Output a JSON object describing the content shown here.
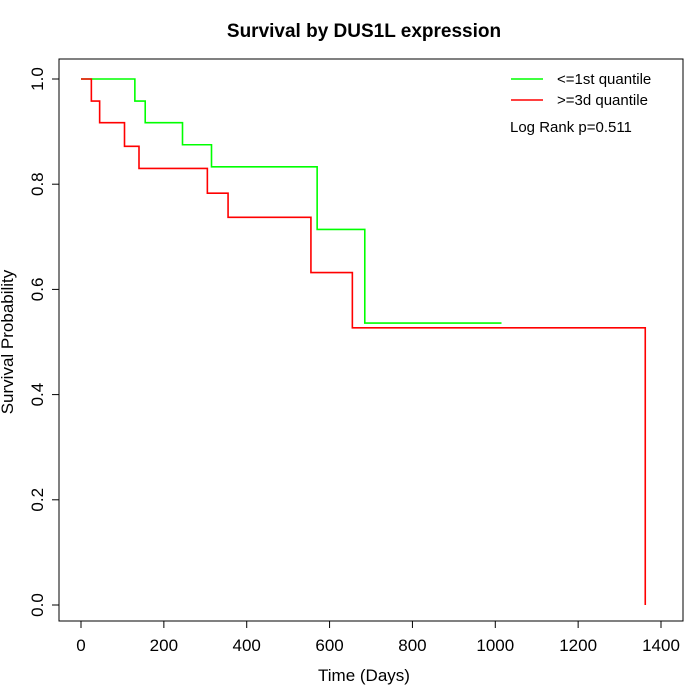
{
  "chart_data": {
    "type": "line",
    "title": "Survival by DUS1L expression",
    "xlabel": "Time (Days)",
    "ylabel": "Survival Probability",
    "xlim": [
      0,
      1400
    ],
    "ylim": [
      0,
      1.0
    ],
    "x_ticks": [
      0,
      200,
      400,
      600,
      800,
      1000,
      1200,
      1400
    ],
    "x_tick_labels": [
      "0",
      "200",
      "400",
      "600",
      "800",
      "1000",
      "1200",
      "1400"
    ],
    "y_ticks": [
      0.0,
      0.2,
      0.4,
      0.6,
      0.8,
      1.0
    ],
    "y_tick_labels": [
      "0.0",
      "0.2",
      "0.4",
      "0.6",
      "0.8",
      "1.0"
    ],
    "grid": false,
    "legend_position": "top-right",
    "annotation": "Log Rank p=0.511",
    "series": [
      {
        "name": "<=1st quantile",
        "color": "#00ff00",
        "step": true,
        "x": [
          0,
          130,
          155,
          245,
          315,
          570,
          685,
          1015
        ],
        "y": [
          1.0,
          0.958,
          0.917,
          0.875,
          0.833,
          0.714,
          0.536,
          0.536
        ]
      },
      {
        "name": ">=3d quantile",
        "color": "#ff0000",
        "step": true,
        "x": [
          0,
          25,
          45,
          105,
          140,
          305,
          355,
          555,
          655,
          1362,
          1362
        ],
        "y": [
          1.0,
          0.958,
          0.917,
          0.872,
          0.83,
          0.783,
          0.737,
          0.632,
          0.527,
          0.527,
          0.0
        ]
      }
    ]
  }
}
